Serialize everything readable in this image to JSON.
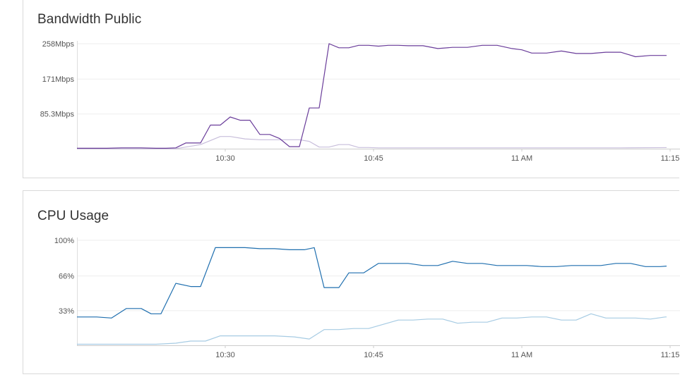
{
  "panels": [
    {
      "title": "Bandwidth Public"
    },
    {
      "title": "CPU Usage"
    }
  ],
  "chart_data": [
    {
      "type": "line",
      "title": "Bandwidth Public",
      "ylim": [
        0,
        258
      ],
      "y_ticks": [
        {
          "value": 85.3,
          "label": "85.3Mbps"
        },
        {
          "value": 171,
          "label": "171Mbps"
        },
        {
          "value": 258,
          "label": "258Mbps"
        }
      ],
      "xlim": [
        "10:15",
        "11:16"
      ],
      "x_ticks": [
        {
          "value": "10:30",
          "label": "10:30"
        },
        {
          "value": "10:45",
          "label": "10:45"
        },
        {
          "value": "11:00",
          "label": "11 AM"
        },
        {
          "value": "11:15",
          "label": "11:15"
        }
      ],
      "grid": true,
      "series": [
        {
          "color": "#6a3d9a",
          "x": [
            "10:15",
            "10:18",
            "10:19.5",
            "10:21.5",
            "10:23",
            "10:24",
            "10:25",
            "10:26",
            "10:27.5",
            "10:28.5",
            "10:29.5",
            "10:30.5",
            "10:31.5",
            "10:32.5",
            "10:33.5",
            "10:34.5",
            "10:35.5",
            "10:36.5",
            "10:37.5",
            "10:38.5",
            "10:39.5",
            "10:40.5",
            "10:41.5",
            "10:42.5",
            "10:43.5",
            "10:44.5",
            "10:45.5",
            "10:46.5",
            "10:47.5",
            "10:48.5",
            "10:50",
            "10:51.5",
            "10:53",
            "10:54.5",
            "10:56",
            "10:57.5",
            "10:59",
            "11:00",
            "11:01",
            "11:02.5",
            "11:04",
            "11:05.5",
            "11:07",
            "11:08.5",
            "11:10",
            "11:11.5",
            "11:13",
            "11:14.5",
            "11:16"
          ],
          "values": [
            1,
            1,
            2,
            2,
            1,
            1,
            2,
            14,
            14,
            58,
            58,
            78,
            70,
            70,
            35,
            35,
            25,
            5,
            5,
            100,
            100,
            258,
            248,
            248,
            254,
            254,
            252,
            254,
            254,
            253,
            253,
            246,
            249,
            249,
            254,
            254,
            246,
            243,
            235,
            235,
            240,
            234,
            234,
            237,
            237,
            226,
            229,
            229,
            229
          ]
        },
        {
          "color": "#c8bedb",
          "x": [
            "10:15",
            "10:20",
            "10:25",
            "10:27.5",
            "10:29.5",
            "10:30.5",
            "10:32",
            "10:33.5",
            "10:35",
            "10:36.5",
            "10:37.5",
            "10:38.5",
            "10:39.5",
            "10:40.5",
            "10:41.5",
            "10:42.5",
            "10:43.5",
            "10:44.5",
            "10:45.5",
            "10:50",
            "11:00",
            "11:10",
            "11:16"
          ],
          "values": [
            0,
            0,
            0,
            10,
            30,
            30,
            24,
            22,
            22,
            22,
            22,
            18,
            4,
            4,
            10,
            10,
            3,
            3,
            2,
            2,
            2,
            2,
            3
          ]
        }
      ]
    },
    {
      "type": "line",
      "title": "CPU Usage",
      "ylim": [
        0,
        100
      ],
      "y_ticks": [
        {
          "value": 33,
          "label": "33%"
        },
        {
          "value": 66,
          "label": "66%"
        },
        {
          "value": 100,
          "label": "100%"
        }
      ],
      "xlim": [
        "10:15",
        "11:16"
      ],
      "x_ticks": [
        {
          "value": "10:30",
          "label": "10:30"
        },
        {
          "value": "10:45",
          "label": "10:45"
        },
        {
          "value": "11:00",
          "label": "11 AM"
        },
        {
          "value": "11:15",
          "label": "11:15"
        }
      ],
      "grid": true,
      "series": [
        {
          "color": "#1f6faf",
          "x": [
            "10:15",
            "10:17",
            "10:18.5",
            "10:20",
            "10:21.5",
            "10:22.5",
            "10:23.5",
            "10:25",
            "10:26.5",
            "10:27.5",
            "10:29",
            "10:30.5",
            "10:32",
            "10:33.5",
            "10:35",
            "10:36.5",
            "10:38",
            "10:39",
            "10:40",
            "10:41.5",
            "10:42.5",
            "10:44",
            "10:45.5",
            "10:47",
            "10:48.5",
            "10:50",
            "10:51.5",
            "10:53",
            "10:54.5",
            "10:56",
            "10:57.5",
            "10:59",
            "11:00.5",
            "11:02",
            "11:03.5",
            "11:05",
            "11:06.5",
            "11:08",
            "11:09.5",
            "11:11",
            "11:12.5",
            "11:14",
            "11:15.5",
            "11:16"
          ],
          "values": [
            27,
            27,
            26,
            35,
            35,
            30,
            30,
            59,
            56,
            56,
            93,
            93,
            93,
            92,
            92,
            91,
            91,
            93,
            55,
            55,
            69,
            69,
            78,
            78,
            78,
            76,
            76,
            80,
            78,
            78,
            76,
            76,
            76,
            75,
            75,
            76,
            76,
            76,
            78,
            78,
            75,
            75,
            76,
            75
          ]
        },
        {
          "color": "#a6cbe3",
          "x": [
            "10:15",
            "10:17",
            "10:19",
            "10:21",
            "10:23",
            "10:25",
            "10:26.5",
            "10:28",
            "10:29.5",
            "10:31",
            "10:33",
            "10:35",
            "10:37",
            "10:38.5",
            "10:40",
            "10:41.5",
            "10:43",
            "10:44.5",
            "10:46",
            "10:47.5",
            "10:49",
            "10:50.5",
            "10:52",
            "10:53.5",
            "10:55",
            "10:56.5",
            "10:58",
            "10:59.5",
            "11:01",
            "11:02.5",
            "11:04",
            "11:05.5",
            "11:07",
            "11:08.5",
            "11:10",
            "11:11.5",
            "11:13",
            "11:14.5",
            "11:16"
          ],
          "values": [
            1,
            1,
            1,
            1,
            1,
            2,
            4,
            4,
            9,
            9,
            9,
            9,
            8,
            6,
            15,
            15,
            16,
            16,
            20,
            24,
            24,
            25,
            25,
            21,
            22,
            22,
            26,
            26,
            27,
            27,
            24,
            24,
            30,
            26,
            26,
            26,
            25,
            27,
            27
          ]
        }
      ]
    }
  ]
}
